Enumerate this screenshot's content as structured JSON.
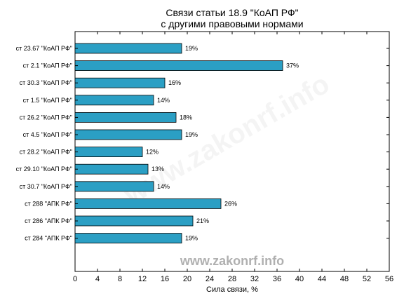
{
  "chart_data": {
    "type": "bar",
    "orientation": "horizontal",
    "title_line1": "Связи статьи 18.9 \"КоАП РФ\"",
    "title_line2": "с другими правовыми нормами",
    "xlabel": "Сила связи, %",
    "ylabel": "",
    "xlim": [
      0,
      56
    ],
    "xticks": [
      0,
      4,
      8,
      12,
      16,
      20,
      24,
      28,
      32,
      36,
      40,
      44,
      48,
      52,
      56
    ],
    "grid": false,
    "bar_color": "#2b9fc4",
    "value_suffix": "%",
    "categories": [
      "ст 23.67 \"КоАП РФ\"",
      "ст 2.1 \"КоАП РФ\"",
      "ст 30.3 \"КоАП РФ\"",
      "ст 1.5 \"КоАП РФ\"",
      "ст 26.2 \"КоАП РФ\"",
      "ст 4.5 \"КоАП РФ\"",
      "ст 28.2 \"КоАП РФ\"",
      "ст 29.10 \"КоАП РФ\"",
      "ст 30.7 \"КоАП РФ\"",
      "ст 288 \"АПК РФ\"",
      "ст 286 \"АПК РФ\"",
      "ст 284 \"АПК РФ\""
    ],
    "values": [
      19,
      37,
      16,
      14,
      18,
      19,
      12,
      13,
      14,
      26,
      21,
      19
    ]
  },
  "watermark": "www.zakonrf.info"
}
